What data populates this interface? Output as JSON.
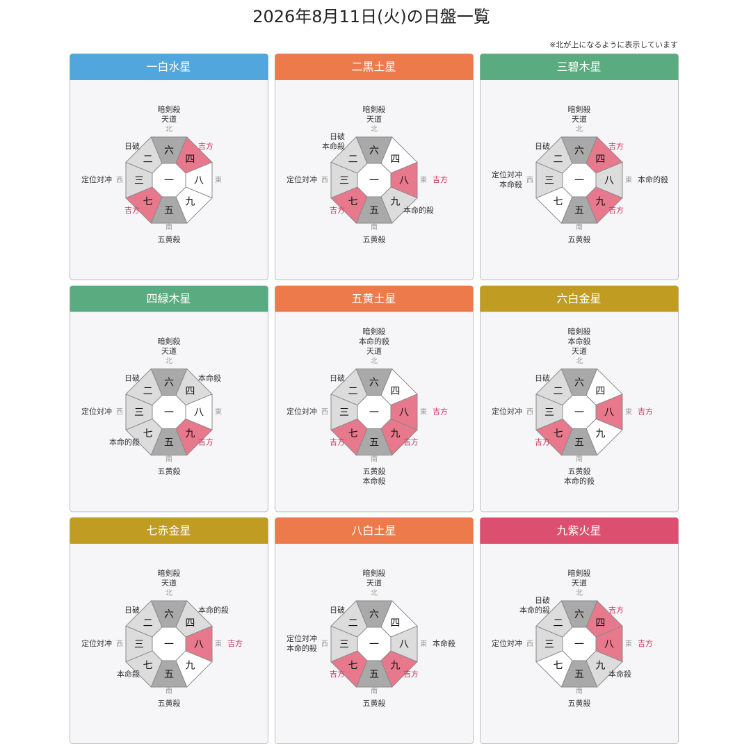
{
  "title": "2026年8月11日(火)の日盤一覧",
  "note": "※北が上になるように表示しています",
  "cards": [
    {
      "name": "一白水星",
      "color": "#50a6dd",
      "center": "一",
      "cells": [
        {
          "number": "六",
          "compass": "北",
          "labels": [
            "暗剣殺",
            "天道"
          ]
        },
        {
          "number": "四",
          "labels": [
            "吉方"
          ]
        },
        {
          "number": "八",
          "compass": "東",
          "labels": []
        },
        {
          "number": "九",
          "labels": []
        },
        {
          "number": "五",
          "compass": "南",
          "labels": [
            "五黄殺"
          ]
        },
        {
          "number": "七",
          "labels": [
            "吉方"
          ]
        },
        {
          "number": "三",
          "compass": "西",
          "labels": [
            "定位対冲"
          ]
        },
        {
          "number": "二",
          "labels": [
            "日破"
          ]
        }
      ]
    },
    {
      "name": "二黒土星",
      "color": "#ec7a4b",
      "center": "一",
      "cells": [
        {
          "number": "六",
          "compass": "北",
          "labels": [
            "暗剣殺",
            "天道"
          ]
        },
        {
          "number": "四",
          "labels": []
        },
        {
          "number": "八",
          "compass": "東",
          "labels": [
            "吉方"
          ]
        },
        {
          "number": "九",
          "labels": [
            "本命的殺"
          ]
        },
        {
          "number": "五",
          "compass": "南",
          "labels": [
            "五黄殺"
          ]
        },
        {
          "number": "七",
          "labels": [
            "吉方"
          ]
        },
        {
          "number": "三",
          "compass": "西",
          "labels": [
            "定位対冲"
          ]
        },
        {
          "number": "二",
          "labels": [
            "日破",
            "本命殺"
          ]
        }
      ]
    },
    {
      "name": "三碧木星",
      "color": "#5aac80",
      "center": "一",
      "cells": [
        {
          "number": "六",
          "compass": "北",
          "labels": [
            "暗剣殺",
            "天道"
          ]
        },
        {
          "number": "四",
          "labels": [
            "吉方"
          ]
        },
        {
          "number": "八",
          "compass": "東",
          "labels": [
            "本命的殺"
          ]
        },
        {
          "number": "九",
          "labels": [
            "吉方"
          ]
        },
        {
          "number": "五",
          "compass": "南",
          "labels": [
            "五黄殺"
          ]
        },
        {
          "number": "七",
          "labels": []
        },
        {
          "number": "三",
          "compass": "西",
          "labels": [
            "定位対冲",
            "本命殺"
          ]
        },
        {
          "number": "二",
          "labels": [
            "日破"
          ]
        }
      ]
    },
    {
      "name": "四緑木星",
      "color": "#5aac80",
      "center": "一",
      "cells": [
        {
          "number": "六",
          "compass": "北",
          "labels": [
            "暗剣殺",
            "天道"
          ]
        },
        {
          "number": "四",
          "labels": [
            "本命殺"
          ]
        },
        {
          "number": "八",
          "compass": "東",
          "labels": []
        },
        {
          "number": "九",
          "labels": [
            "吉方"
          ]
        },
        {
          "number": "五",
          "compass": "南",
          "labels": [
            "五黄殺"
          ]
        },
        {
          "number": "七",
          "labels": [
            "本命的殺"
          ]
        },
        {
          "number": "三",
          "compass": "西",
          "labels": [
            "定位対冲"
          ]
        },
        {
          "number": "二",
          "labels": [
            "日破"
          ]
        }
      ]
    },
    {
      "name": "五黄土星",
      "color": "#ec7a4b",
      "center": "一",
      "cells": [
        {
          "number": "六",
          "compass": "北",
          "labels": [
            "暗剣殺",
            "本命的殺",
            "天道"
          ]
        },
        {
          "number": "四",
          "labels": []
        },
        {
          "number": "八",
          "compass": "東",
          "labels": [
            "吉方"
          ]
        },
        {
          "number": "九",
          "labels": [
            "吉方"
          ]
        },
        {
          "number": "五",
          "compass": "南",
          "labels": [
            "五黄殺",
            "本命殺"
          ]
        },
        {
          "number": "七",
          "labels": [
            "吉方"
          ]
        },
        {
          "number": "三",
          "compass": "西",
          "labels": [
            "定位対冲"
          ]
        },
        {
          "number": "二",
          "labels": [
            "日破"
          ]
        }
      ]
    },
    {
      "name": "六白金星",
      "color": "#c09c22",
      "center": "一",
      "cells": [
        {
          "number": "六",
          "compass": "北",
          "labels": [
            "暗剣殺",
            "本命殺",
            "天道"
          ]
        },
        {
          "number": "四",
          "labels": []
        },
        {
          "number": "八",
          "compass": "東",
          "labels": [
            "吉方"
          ]
        },
        {
          "number": "九",
          "labels": []
        },
        {
          "number": "五",
          "compass": "南",
          "labels": [
            "五黄殺",
            "本命的殺"
          ]
        },
        {
          "number": "七",
          "labels": [
            "吉方"
          ]
        },
        {
          "number": "三",
          "compass": "西",
          "labels": [
            "定位対冲"
          ]
        },
        {
          "number": "二",
          "labels": [
            "日破"
          ]
        }
      ]
    },
    {
      "name": "七赤金星",
      "color": "#c09c22",
      "center": "一",
      "cells": [
        {
          "number": "六",
          "compass": "北",
          "labels": [
            "暗剣殺",
            "天道"
          ]
        },
        {
          "number": "四",
          "labels": [
            "本命的殺"
          ]
        },
        {
          "number": "八",
          "compass": "東",
          "labels": [
            "吉方"
          ]
        },
        {
          "number": "九",
          "labels": []
        },
        {
          "number": "五",
          "compass": "南",
          "labels": [
            "五黄殺"
          ]
        },
        {
          "number": "七",
          "labels": [
            "本命殺"
          ]
        },
        {
          "number": "三",
          "compass": "西",
          "labels": [
            "定位対冲"
          ]
        },
        {
          "number": "二",
          "labels": [
            "日破"
          ]
        }
      ]
    },
    {
      "name": "八白土星",
      "color": "#ec7a4b",
      "center": "一",
      "cells": [
        {
          "number": "六",
          "compass": "北",
          "labels": [
            "暗剣殺",
            "天道"
          ]
        },
        {
          "number": "四",
          "labels": []
        },
        {
          "number": "八",
          "compass": "東",
          "labels": [
            "本命殺"
          ]
        },
        {
          "number": "九",
          "labels": [
            "吉方"
          ]
        },
        {
          "number": "五",
          "compass": "南",
          "labels": [
            "五黄殺"
          ]
        },
        {
          "number": "七",
          "labels": [
            "吉方"
          ]
        },
        {
          "number": "三",
          "compass": "西",
          "labels": [
            "定位対冲",
            "本命的殺"
          ]
        },
        {
          "number": "二",
          "labels": [
            "日破"
          ]
        }
      ]
    },
    {
      "name": "九紫火星",
      "color": "#dc4f6e",
      "center": "一",
      "cells": [
        {
          "number": "六",
          "compass": "北",
          "labels": [
            "暗剣殺",
            "天道"
          ]
        },
        {
          "number": "四",
          "labels": [
            "吉方"
          ]
        },
        {
          "number": "八",
          "compass": "東",
          "labels": [
            "吉方"
          ]
        },
        {
          "number": "九",
          "labels": [
            "本命殺"
          ]
        },
        {
          "number": "五",
          "compass": "南",
          "labels": [
            "五黄殺"
          ]
        },
        {
          "number": "七",
          "labels": []
        },
        {
          "number": "三",
          "compass": "西",
          "labels": [
            "定位対冲"
          ]
        },
        {
          "number": "二",
          "labels": [
            "日破",
            "本命的殺"
          ]
        }
      ]
    }
  ]
}
